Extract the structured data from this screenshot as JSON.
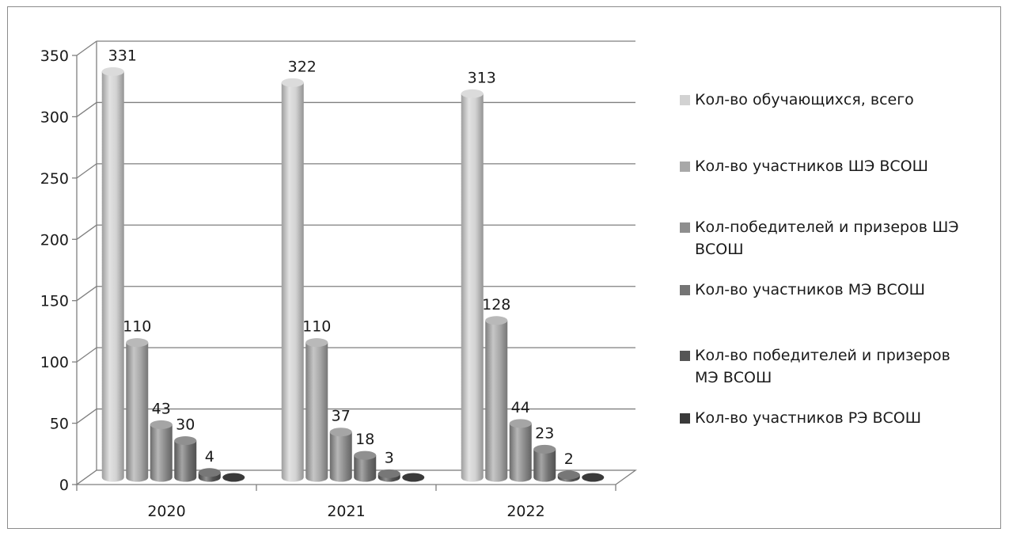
{
  "chart_data": {
    "type": "bar",
    "categories": [
      "2020",
      "2021",
      "2022"
    ],
    "series": [
      {
        "name": "Кол-во обучающихся, всего",
        "values": [
          331,
          322,
          313
        ]
      },
      {
        "name": "Кол-во участников ШЭ ВСОШ",
        "values": [
          110,
          110,
          128
        ]
      },
      {
        "name": "Кол-победителей и призеров ШЭ ВСОШ",
        "values": [
          43,
          37,
          44
        ]
      },
      {
        "name": "Кол-во участников МЭ ВСОШ",
        "values": [
          30,
          18,
          23
        ]
      },
      {
        "name": "Кол-во победителей и призеров МЭ ВСОШ",
        "values": [
          4,
          3,
          2
        ]
      },
      {
        "name": "Кол-во участников РЭ ВСОШ",
        "values": [
          0,
          0,
          0
        ]
      }
    ],
    "data_labels": [
      [
        "331",
        "110",
        "43",
        "30",
        "4",
        ""
      ],
      [
        "322",
        "110",
        "37",
        "18",
        "3",
        ""
      ],
      [
        "313",
        "128",
        "44",
        "23",
        "2",
        ""
      ]
    ],
    "legend": {
      "lines": [
        [
          "Кол-во обучающихся, всего"
        ],
        [
          "Кол-во участников ШЭ ВСОШ"
        ],
        [
          "Кол-победителей и призеров ШЭ",
          "ВСОШ"
        ],
        [
          "Кол-во участников МЭ ВСОШ"
        ],
        [
          "Кол-во победителей и призеров",
          "МЭ ВСОШ"
        ],
        [
          "Кол-во участников РЭ ВСОШ"
        ]
      ],
      "position": "right"
    },
    "ylim": [
      0,
      350
    ],
    "yticks": [
      "0",
      "50",
      "100",
      "150",
      "200",
      "250",
      "300",
      "350"
    ],
    "grid": true,
    "style": "3d-cylinder",
    "colors": [
      "#d2d2d2",
      "#a8a8a8",
      "#8e8e8e",
      "#747474",
      "#555555",
      "#3a3a3a"
    ]
  }
}
